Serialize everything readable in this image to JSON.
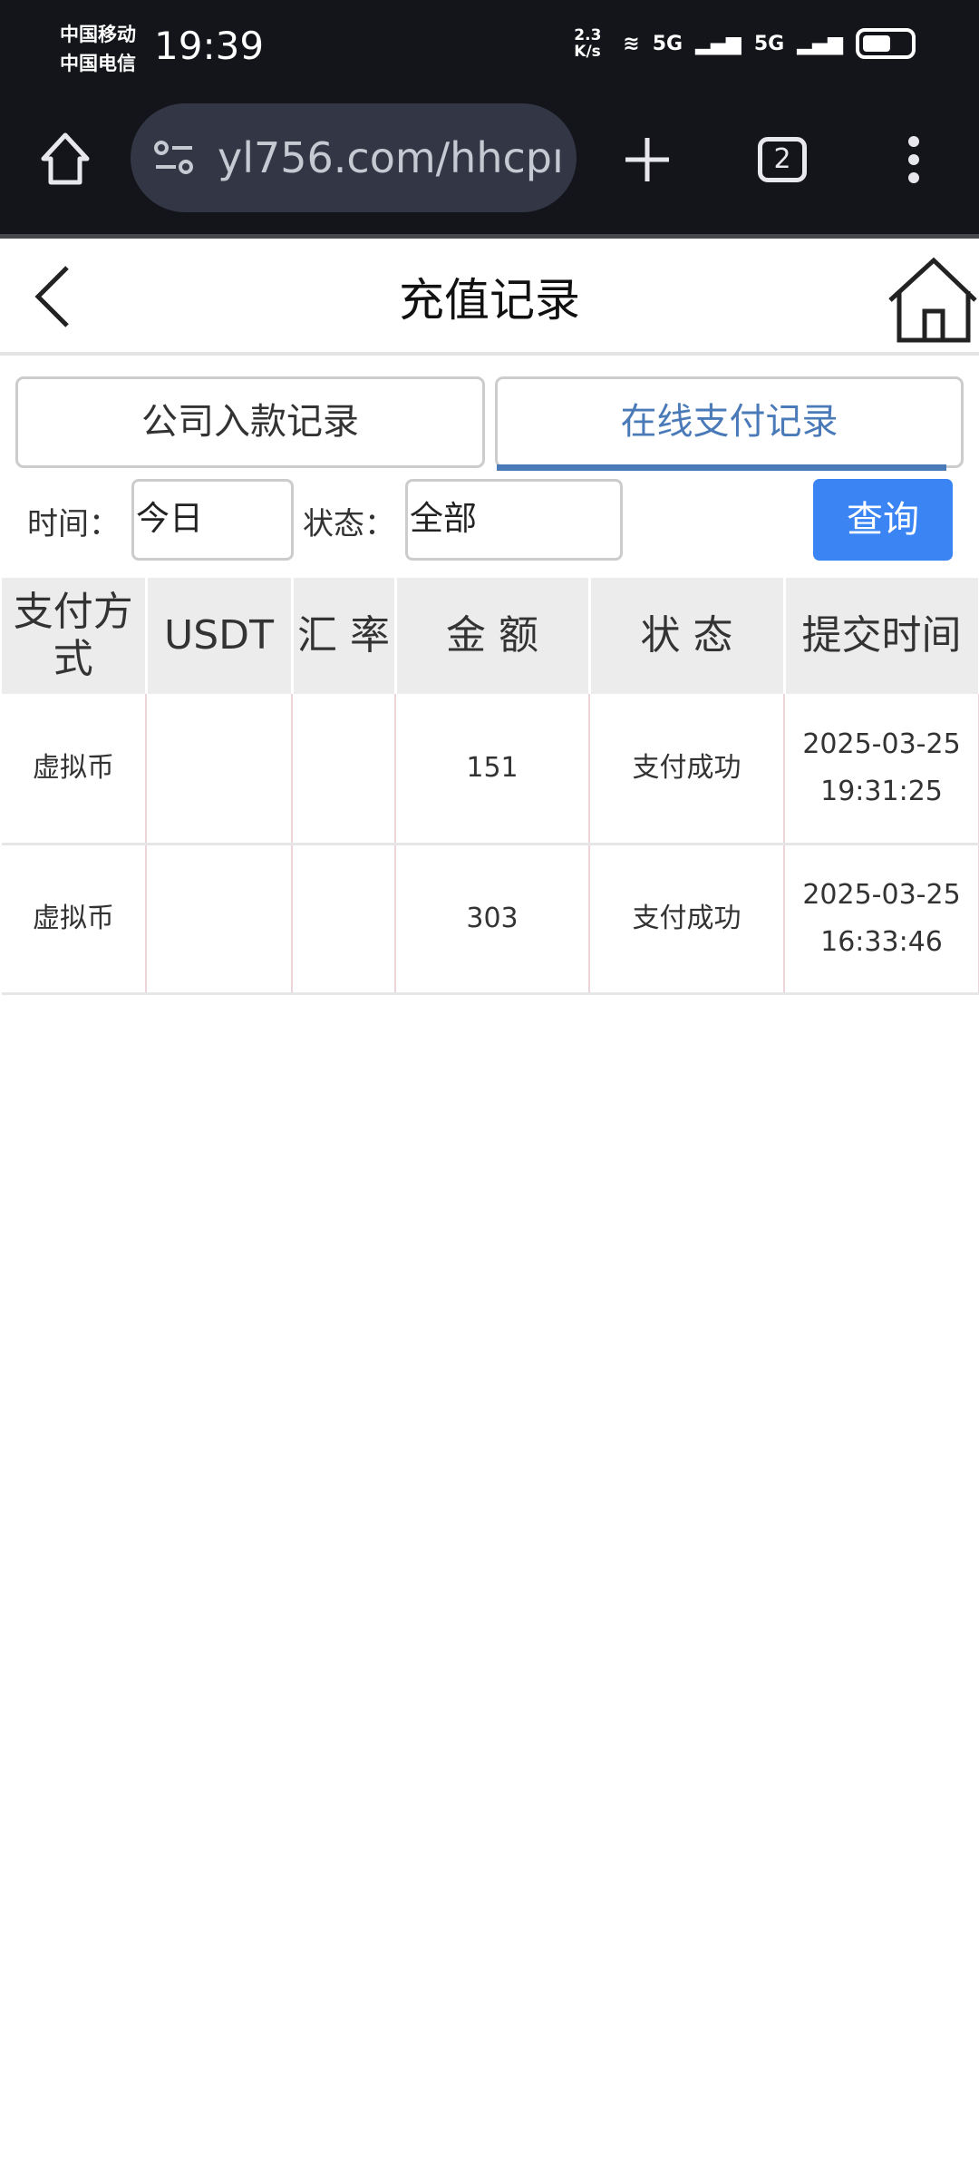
{
  "status_bar": {
    "carrier1": "中国移动",
    "carrier2": "中国电信",
    "time": "19:39",
    "speed": "2.3 K/s",
    "net1": "5G",
    "net2": "5G"
  },
  "browser": {
    "url": "yl756.com/hhcpı",
    "tab_count": "2"
  },
  "header": {
    "title": "充值记录"
  },
  "tabs": [
    {
      "label": "公司入款记录",
      "active": false
    },
    {
      "label": "在线支付记录",
      "active": true
    }
  ],
  "filter": {
    "time_label": "时间：",
    "time_value": "今日",
    "status_label": "状态：",
    "status_value": "全部",
    "query_label": "查询"
  },
  "table": {
    "headers": [
      "支付方式",
      "USDT",
      "汇 率",
      "金 额",
      "状 态",
      "提交时间"
    ],
    "rows": [
      {
        "method": "虚拟币",
        "usdt": "",
        "rate": "",
        "amount": "151",
        "status": "支付成功",
        "date": "2025-03-25",
        "time": "19:31:25"
      },
      {
        "method": "虚拟币",
        "usdt": "",
        "rate": "",
        "amount": "303",
        "status": "支付成功",
        "date": "2025-03-25",
        "time": "16:33:46"
      }
    ]
  },
  "colors": {
    "accent": "#3a84f4",
    "active_tab": "#4a7ab8"
  }
}
